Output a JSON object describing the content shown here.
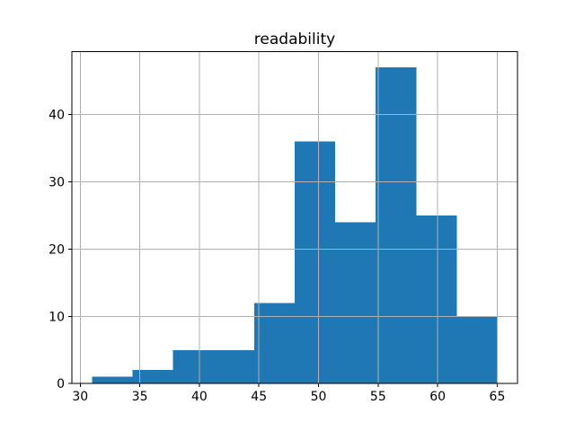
{
  "chart_data": {
    "type": "bar",
    "subtype": "histogram",
    "title": "readability",
    "xlabel": "",
    "ylabel": "",
    "bin_edges": [
      31.0,
      34.4,
      37.8,
      41.2,
      44.6,
      48.0,
      51.4,
      54.8,
      58.2,
      61.6,
      65.0
    ],
    "counts": [
      1,
      2,
      5,
      5,
      12,
      36,
      24,
      47,
      25,
      10
    ],
    "xticks": [
      30,
      35,
      40,
      45,
      50,
      55,
      60,
      65
    ],
    "yticks": [
      0,
      10,
      20,
      30,
      40
    ],
    "xlim": [
      29.3,
      66.7
    ],
    "ylim": [
      0,
      49.35
    ],
    "grid": true,
    "legend": false,
    "bar_color": "#1f77b4",
    "grid_color": "#b0b0b0",
    "spine_color": "#000000",
    "background_color": "#ffffff"
  }
}
